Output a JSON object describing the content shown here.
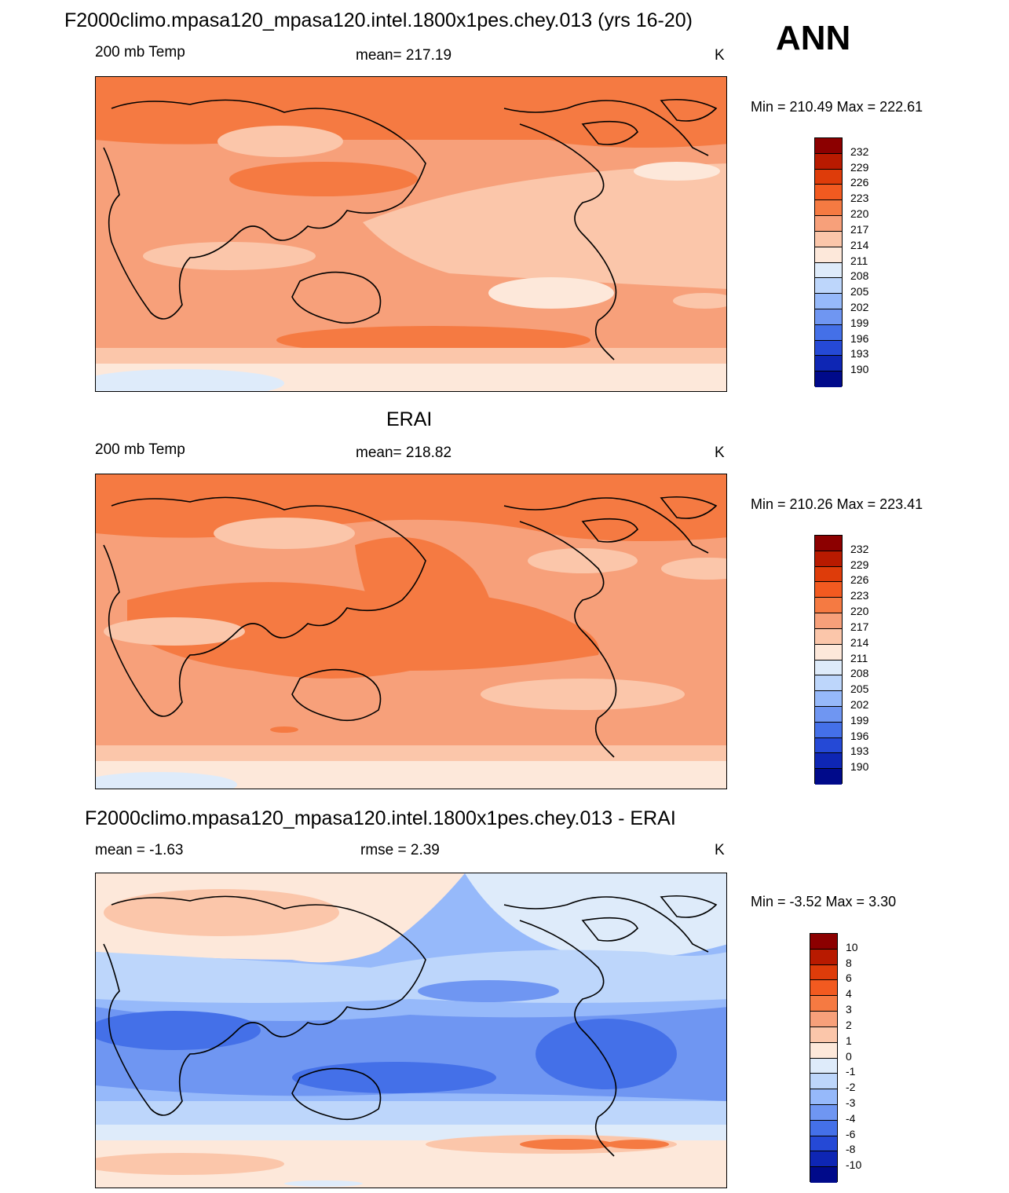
{
  "header": {
    "title": "F2000climo.mpasa120_mpasa120.intel.1800x1pes.chey.013 (yrs 16-20)",
    "season": "ANN"
  },
  "panels": [
    {
      "title": "",
      "left": "200 mb Temp",
      "center": "mean= 217.19",
      "units": "K",
      "minmax": "Min = 210.49 Max = 222.61",
      "colorbar_labels": [
        "232",
        "229",
        "226",
        "223",
        "220",
        "217",
        "214",
        "211",
        "208",
        "205",
        "202",
        "199",
        "196",
        "193",
        "190"
      ]
    },
    {
      "title": "ERAI",
      "left": "200 mb Temp",
      "center": "mean= 218.82",
      "units": "K",
      "minmax": "Min = 210.26 Max = 223.41",
      "colorbar_labels": [
        "232",
        "229",
        "226",
        "223",
        "220",
        "217",
        "214",
        "211",
        "208",
        "205",
        "202",
        "199",
        "196",
        "193",
        "190"
      ]
    },
    {
      "title": "F2000climo.mpasa120_mpasa120.intel.1800x1pes.chey.013 - ERAI",
      "left": "mean =  -1.63",
      "center": "rmse =   2.39",
      "units": "K",
      "minmax": "Min =  -3.52 Max =   3.30",
      "colorbar_labels": [
        "10",
        "8",
        "6",
        "4",
        "3",
        "2",
        "1",
        "0",
        "-1",
        "-2",
        "-3",
        "-4",
        "-6",
        "-8",
        "-10"
      ]
    }
  ],
  "colors": {
    "scale16": [
      "#8c0000",
      "#b81a00",
      "#de3c0a",
      "#f25a20",
      "#f57a42",
      "#f7a07a",
      "#fbc6aa",
      "#fde8da",
      "#deebfa",
      "#bdd6fb",
      "#96b9fa",
      "#6f96f2",
      "#4470e8",
      "#2549d6",
      "#0e26b4",
      "#000a8a"
    ],
    "coast": "#000000"
  }
}
